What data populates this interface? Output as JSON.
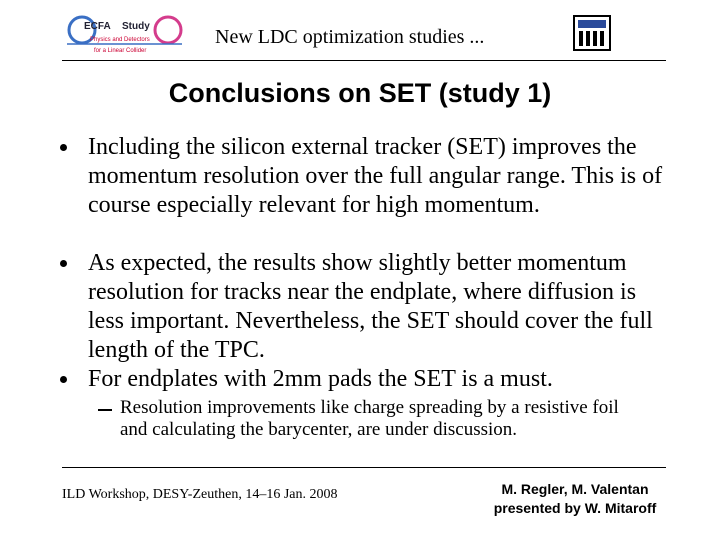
{
  "header": {
    "title": "New LDC optimization studies ...",
    "logo": {
      "name": "ECFA",
      "tag": "Study",
      "line1": "Physics and Detectors",
      "line2": "for a Linear Collider"
    }
  },
  "slide": {
    "title": "Conclusions on SET (study 1)",
    "bullets": [
      "Including the silicon external tracker (SET) improves the momentum resolution over the full angular range. This is of course especially relevant for high momentum.",
      "As expected, the results show slightly better momentum resolution for tracks near the endplate, where diffusion is less important. Nevertheless, the SET should cover the full length of the TPC.",
      "For endplates with 2mm pads the SET is a must."
    ],
    "sub_bullets": [
      "Resolution improvements like charge spreading by a resistive foil and calculating the barycenter, are under discussion."
    ]
  },
  "footer": {
    "event": "ILD Workshop, DESY-Zeuthen, 14–16 Jan. 2008",
    "authors": "M. Regler, M. Valentan",
    "presenter": "presented by W. Mitaroff"
  }
}
